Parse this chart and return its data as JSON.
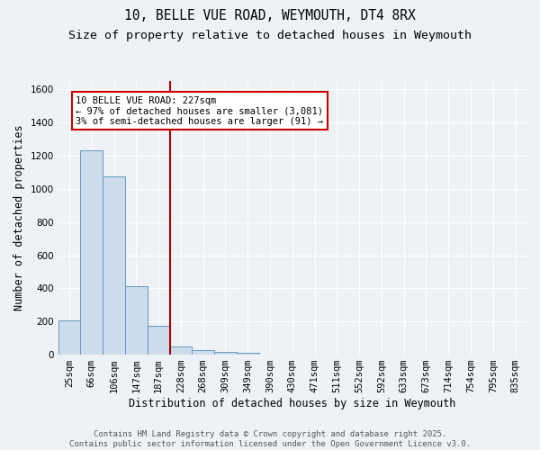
{
  "title": "10, BELLE VUE ROAD, WEYMOUTH, DT4 8RX",
  "subtitle": "Size of property relative to detached houses in Weymouth",
  "xlabel": "Distribution of detached houses by size in Weymouth",
  "ylabel": "Number of detached properties",
  "categories": [
    "25sqm",
    "66sqm",
    "106sqm",
    "147sqm",
    "187sqm",
    "228sqm",
    "268sqm",
    "309sqm",
    "349sqm",
    "390sqm",
    "430sqm",
    "471sqm",
    "511sqm",
    "552sqm",
    "592sqm",
    "633sqm",
    "673sqm",
    "714sqm",
    "754sqm",
    "795sqm",
    "835sqm"
  ],
  "values": [
    205,
    1230,
    1075,
    415,
    175,
    50,
    25,
    15,
    10,
    0,
    0,
    0,
    0,
    0,
    0,
    0,
    0,
    0,
    0,
    0,
    0
  ],
  "bar_color": "#cddcec",
  "bar_edge_color": "#6699bb",
  "marker_label": "10 BELLE VUE ROAD: 227sqm",
  "annotation_line1": "← 97% of detached houses are smaller (3,081)",
  "annotation_line2": "3% of semi-detached houses are larger (91) →",
  "annotation_box_color": "#ffffff",
  "annotation_box_edge": "#cc0000",
  "vline_color": "#aa0000",
  "ylim": [
    0,
    1650
  ],
  "yticks": [
    0,
    200,
    400,
    600,
    800,
    1000,
    1200,
    1400,
    1600
  ],
  "bg_color": "#eef2f7",
  "grid_color": "#ffffff",
  "footer_line1": "Contains HM Land Registry data © Crown copyright and database right 2025.",
  "footer_line2": "Contains public sector information licensed under the Open Government Licence v3.0.",
  "title_fontsize": 10.5,
  "subtitle_fontsize": 9.5,
  "axis_label_fontsize": 8.5,
  "tick_fontsize": 7.5,
  "annotation_fontsize": 7.5,
  "footer_fontsize": 6.5
}
